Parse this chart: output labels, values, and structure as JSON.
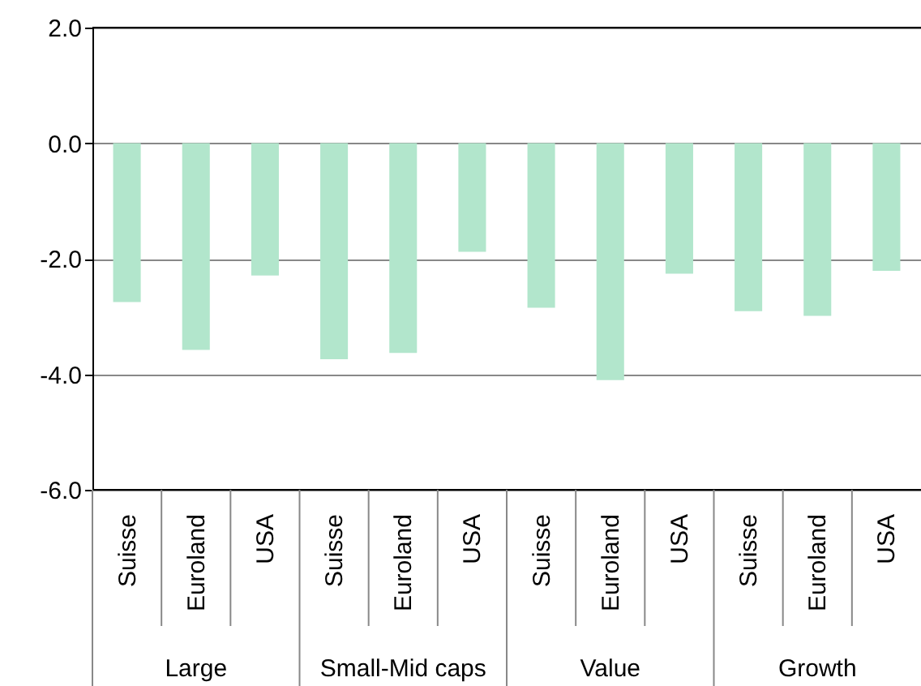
{
  "chart_data": {
    "type": "bar",
    "categories": [
      "Suisse",
      "Euroland",
      "USA",
      "Suisse",
      "Euroland",
      "USA",
      "Suisse",
      "Euroland",
      "USA",
      "Suisse",
      "Euroland",
      "USA"
    ],
    "values": [
      -2.75,
      -3.58,
      -2.29,
      -3.74,
      -3.63,
      -1.88,
      -2.85,
      -4.1,
      -2.26,
      -2.91,
      -2.99,
      -2.21
    ],
    "color": "#b2e6cc",
    "ylim": [
      -6.0,
      2.0
    ],
    "yticks": [
      {
        "value": -6,
        "label": "-6.0"
      },
      {
        "value": -4,
        "label": "-4.0"
      },
      {
        "value": -2,
        "label": "-2.0"
      },
      {
        "value": 0,
        "label": "0.0"
      },
      {
        "value": 2,
        "label": "2.0"
      }
    ],
    "grid": "y",
    "annotations": [
      "Large",
      "Small-Mid caps",
      "Value",
      "Growth"
    ]
  }
}
